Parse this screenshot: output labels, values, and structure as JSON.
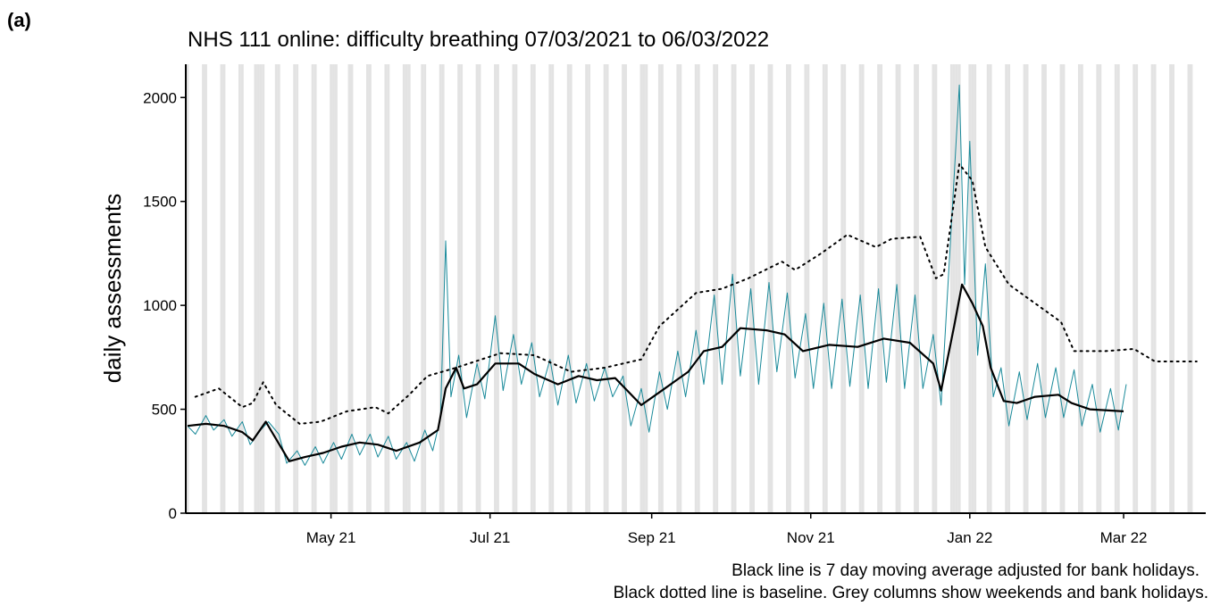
{
  "panel_label": "(a)",
  "chart_data": {
    "type": "line",
    "title": "NHS 111 online: difficulty breathing 07/03/2021 to 06/03/2022",
    "y_label": "daily assessments",
    "notes": [
      "Black line is 7 day moving average adjusted for bank holidays.",
      "Black dotted line is baseline. Grey columns show weekends and bank holidays."
    ],
    "xlim": [
      -0.7,
      390.5
    ],
    "xticks": [
      {
        "value": 55,
        "label": "May 21"
      },
      {
        "value": 116,
        "label": "Jul 21"
      },
      {
        "value": 178,
        "label": "Sep 21"
      },
      {
        "value": 239,
        "label": "Nov 21"
      },
      {
        "value": 300,
        "label": "Jan 22"
      },
      {
        "value": 359,
        "label": "Mar 22"
      }
    ],
    "ylim": [
      0,
      2160
    ],
    "yticks": [
      0,
      500,
      1000,
      1500,
      2000
    ],
    "shade_color": "#e3e3e3",
    "shaded_days": [
      0,
      6,
      7,
      13,
      14,
      20,
      21,
      26,
      27,
      28,
      29,
      34,
      35,
      41,
      42,
      48,
      49,
      55,
      56,
      57,
      62,
      63,
      69,
      70,
      76,
      77,
      83,
      84,
      85,
      90,
      91,
      97,
      98,
      104,
      105,
      111,
      112,
      118,
      119,
      125,
      126,
      132,
      133,
      139,
      140,
      146,
      147,
      153,
      154,
      160,
      161,
      167,
      168,
      174,
      175,
      176,
      181,
      182,
      188,
      189,
      195,
      196,
      202,
      203,
      209,
      210,
      216,
      217,
      223,
      224,
      230,
      231,
      237,
      238,
      244,
      245,
      251,
      252,
      258,
      259,
      265,
      266,
      272,
      273,
      279,
      280,
      286,
      287,
      293,
      294,
      295,
      296,
      300,
      301,
      302,
      307,
      308,
      314,
      315,
      321,
      322,
      328,
      329,
      335,
      336,
      342,
      343,
      349,
      350,
      356,
      357,
      363,
      364,
      370,
      371,
      377,
      378,
      384,
      385
    ],
    "series": [
      {
        "color": "#1a8a9a",
        "style": "solid",
        "width": 1,
        "x": [
          0,
          3,
          7,
          10,
          14,
          17,
          21,
          24,
          28,
          31,
          35,
          38,
          42,
          45,
          49,
          52,
          56,
          59,
          63,
          66,
          70,
          73,
          77,
          80,
          84,
          87,
          91,
          94,
          97,
          99,
          101,
          104,
          107,
          111,
          114,
          118,
          121,
          125,
          128,
          132,
          135,
          139,
          142,
          146,
          149,
          153,
          156,
          160,
          163,
          167,
          170,
          174,
          177,
          181,
          184,
          188,
          191,
          195,
          198,
          202,
          205,
          209,
          212,
          216,
          219,
          223,
          226,
          230,
          233,
          237,
          240,
          244,
          247,
          251,
          254,
          258,
          261,
          265,
          268,
          272,
          275,
          279,
          282,
          286,
          289,
          293,
          296,
          298,
          300,
          303,
          306,
          309,
          312,
          315,
          319,
          322,
          326,
          329,
          333,
          336,
          340,
          343,
          347,
          350,
          354,
          357,
          360
        ],
        "values": [
          420,
          380,
          470,
          400,
          450,
          370,
          440,
          330,
          400,
          440,
          380,
          240,
          300,
          230,
          320,
          240,
          340,
          260,
          380,
          280,
          380,
          270,
          370,
          260,
          340,
          250,
          400,
          300,
          460,
          1310,
          560,
          760,
          460,
          720,
          550,
          950,
          590,
          860,
          620,
          820,
          560,
          740,
          520,
          760,
          530,
          720,
          540,
          700,
          560,
          660,
          420,
          600,
          390,
          680,
          500,
          780,
          560,
          880,
          620,
          1050,
          620,
          1150,
          660,
          1080,
          620,
          1110,
          680,
          1060,
          650,
          960,
          600,
          1010,
          600,
          1030,
          610,
          1050,
          600,
          1080,
          630,
          1100,
          600,
          1050,
          600,
          860,
          520,
          1400,
          2060,
          1100,
          1790,
          760,
          1200,
          560,
          700,
          420,
          680,
          450,
          720,
          460,
          700,
          460,
          690,
          420,
          620,
          390,
          600,
          400,
          620
        ]
      },
      {
        "color": "#000000",
        "style": "solid",
        "width": 2.2,
        "x": [
          0,
          7,
          14,
          21,
          25,
          30,
          39,
          45,
          52,
          59,
          66,
          73,
          80,
          89,
          96,
          99,
          103,
          106,
          111,
          118,
          127,
          133,
          142,
          150,
          157,
          164,
          174,
          183,
          192,
          198,
          205,
          212,
          222,
          229,
          236,
          246,
          257,
          267,
          277,
          286,
          289,
          294,
          297,
          301,
          305,
          308,
          313,
          318,
          325,
          334,
          339,
          346,
          359
        ],
        "values": [
          420,
          430,
          420,
          390,
          350,
          440,
          250,
          270,
          290,
          320,
          340,
          330,
          300,
          340,
          400,
          600,
          700,
          600,
          620,
          720,
          720,
          670,
          620,
          660,
          640,
          650,
          520,
          600,
          680,
          780,
          800,
          890,
          880,
          860,
          780,
          810,
          800,
          840,
          820,
          720,
          590,
          900,
          1100,
          1010,
          900,
          700,
          540,
          530,
          560,
          570,
          530,
          500,
          490
        ]
      },
      {
        "color": "#000000",
        "style": "dotted",
        "width": 2,
        "x": [
          3,
          12,
          21,
          25,
          29,
          34,
          43,
          51,
          61,
          72,
          77,
          85,
          92,
          103,
          120,
          133,
          147,
          160,
          174,
          181,
          195,
          205,
          215,
          228,
          233,
          243,
          253,
          264,
          270,
          281,
          287,
          290,
          296,
          301,
          306,
          315,
          325,
          335,
          340,
          352,
          363,
          371,
          387
        ],
        "values": [
          560,
          600,
          510,
          530,
          630,
          520,
          430,
          440,
          490,
          510,
          480,
          570,
          660,
          700,
          770,
          760,
          680,
          700,
          740,
          900,
          1060,
          1080,
          1130,
          1210,
          1170,
          1250,
          1340,
          1280,
          1320,
          1330,
          1130,
          1150,
          1680,
          1600,
          1280,
          1100,
          1010,
          920,
          780,
          780,
          790,
          730,
          730
        ]
      }
    ]
  }
}
